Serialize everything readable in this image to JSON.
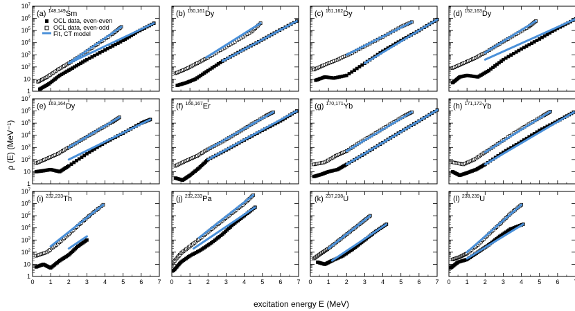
{
  "figure": {
    "xlabel": "excitation energy E (MeV)",
    "ylabel": "ρ (E) (MeV⁻¹)"
  },
  "legend": {
    "even_even": "OCL data, even-even",
    "even_odd": "OCL data, even-odd",
    "fit": "Fit, CT model"
  },
  "colors": {
    "fit": "#4a90d9",
    "marker": "#000000",
    "frame": "#000000"
  },
  "chart_data": [
    {
      "type": "scatter",
      "panel": "(a)",
      "title": "(a) 148,149Sm",
      "sup": "148,149",
      "element": "Sm",
      "xlim": [
        0,
        7
      ],
      "ylim": [
        1,
        10000000
      ],
      "yscale": "log",
      "series": [
        {
          "name": "OCL data, even-even",
          "x": [
            0.4,
            0.9,
            1.5,
            2.2,
            3.0,
            4.0,
            5.0,
            5.8,
            6.7
          ],
          "values": [
            1.5,
            4,
            20,
            80,
            400,
            2500,
            15000,
            80000,
            400000
          ]
        },
        {
          "name": "OCL data, even-odd",
          "x": [
            0.3,
            0.8,
            1.4,
            2.0,
            2.8,
            3.6,
            4.4,
            4.9
          ],
          "values": [
            6,
            15,
            60,
            200,
            1200,
            8000,
            50000,
            200000
          ]
        }
      ],
      "fit": [
        {
          "x": [
            2.0,
            6.7
          ],
          "values": [
            200,
            400000
          ]
        },
        {
          "x": [
            2.0,
            4.9
          ],
          "values": [
            200,
            200000
          ]
        }
      ]
    },
    {
      "type": "scatter",
      "panel": "(b)",
      "title": "(b) 160,161Dy",
      "sup": "160,161",
      "element": "Dy",
      "xlim": [
        0,
        7
      ],
      "ylim": [
        1,
        10000000
      ],
      "yscale": "log",
      "series": [
        {
          "name": "OCL data, even-even",
          "x": [
            0.3,
            0.8,
            1.3,
            2.0,
            2.8,
            3.8,
            4.8,
            5.8,
            6.9
          ],
          "values": [
            3,
            5,
            10,
            50,
            300,
            2000,
            12000,
            80000,
            600000
          ]
        },
        {
          "name": "OCL data, even-odd",
          "x": [
            0.2,
            0.8,
            1.4,
            2.0,
            2.8,
            3.6,
            4.4,
            4.9
          ],
          "values": [
            30,
            70,
            200,
            600,
            3000,
            15000,
            80000,
            400000
          ]
        }
      ],
      "fit": [
        {
          "x": [
            2.8,
            6.9
          ],
          "values": [
            300,
            600000
          ]
        },
        {
          "x": [
            1.9,
            4.9
          ],
          "values": [
            600,
            400000
          ]
        }
      ]
    },
    {
      "type": "scatter",
      "panel": "(c)",
      "title": "(c) 161,162Dy",
      "sup": "161,162",
      "element": "Dy",
      "xlim": [
        0,
        7
      ],
      "ylim": [
        1,
        10000000
      ],
      "yscale": "log",
      "series": [
        {
          "name": "OCL data, even-even",
          "x": [
            0.3,
            0.8,
            1.3,
            2.0,
            3.0,
            4.0,
            5.0,
            6.0,
            7.0
          ],
          "values": [
            8,
            15,
            12,
            20,
            200,
            2000,
            15000,
            100000,
            800000
          ]
        },
        {
          "name": "OCL data, even-odd",
          "x": [
            0.2,
            0.8,
            1.5,
            2.2,
            3.0,
            4.0,
            5.0,
            5.6
          ],
          "values": [
            60,
            150,
            400,
            1200,
            5000,
            30000,
            200000,
            500000
          ]
        }
      ],
      "fit": [
        {
          "x": [
            3.0,
            7.0
          ],
          "values": [
            200,
            800000
          ]
        },
        {
          "x": [
            2.0,
            5.6
          ],
          "values": [
            1000,
            500000
          ]
        }
      ]
    },
    {
      "type": "scatter",
      "panel": "(d)",
      "title": "(d) 162,163Dy",
      "sup": "162,163",
      "element": "Dy",
      "xlim": [
        0,
        7
      ],
      "ylim": [
        1,
        10000000
      ],
      "yscale": "log",
      "series": [
        {
          "name": "OCL data, even-even",
          "x": [
            0.2,
            0.6,
            1.0,
            1.6,
            2.2,
            3.0,
            4.0,
            5.0,
            6.0,
            7.0
          ],
          "values": [
            5,
            15,
            20,
            15,
            50,
            400,
            3000,
            20000,
            150000,
            900000
          ]
        },
        {
          "name": "OCL data, even-odd",
          "x": [
            0.2,
            0.8,
            1.4,
            2.0,
            2.8,
            3.6,
            4.4,
            4.8
          ],
          "values": [
            80,
            200,
            500,
            1500,
            8000,
            40000,
            200000,
            600000
          ]
        }
      ],
      "fit": [
        {
          "x": [
            2.0,
            7.0
          ],
          "values": [
            400,
            900000
          ]
        },
        {
          "x": [
            2.0,
            4.8
          ],
          "values": [
            1500,
            600000
          ]
        }
      ]
    },
    {
      "type": "scatter",
      "panel": "(e)",
      "title": "(e) 163,164Dy",
      "sup": "163,164",
      "element": "Dy",
      "xlim": [
        0,
        7
      ],
      "ylim": [
        1,
        10000000
      ],
      "yscale": "log",
      "series": [
        {
          "name": "OCL data, even-even",
          "x": [
            0.2,
            0.6,
            1.0,
            1.5,
            2.0,
            3.0,
            4.0,
            5.0,
            6.0,
            6.5
          ],
          "values": [
            10,
            12,
            15,
            10,
            30,
            300,
            2500,
            15000,
            100000,
            200000
          ]
        },
        {
          "name": "OCL data, even-odd",
          "x": [
            0.2,
            0.8,
            1.4,
            2.0,
            2.8,
            3.6,
            4.4,
            4.8
          ],
          "values": [
            50,
            120,
            300,
            1000,
            5000,
            25000,
            120000,
            300000
          ]
        }
      ],
      "fit": [
        {
          "x": [
            2.0,
            6.5
          ],
          "values": [
            100,
            200000
          ]
        },
        {
          "x": [
            2.0,
            4.8
          ],
          "values": [
            1000,
            300000
          ]
        }
      ]
    },
    {
      "type": "scatter",
      "panel": "(f)",
      "title": "(f) 166,167Er",
      "sup": "166,167",
      "element": "Er",
      "xlim": [
        0,
        7
      ],
      "ylim": [
        1,
        10000000
      ],
      "yscale": "log",
      "series": [
        {
          "name": "OCL data, even-even",
          "x": [
            0.2,
            0.6,
            1.0,
            1.5,
            2.0,
            3.0,
            4.0,
            5.0,
            6.0,
            6.9
          ],
          "values": [
            3,
            2,
            5,
            20,
            100,
            600,
            4000,
            25000,
            150000,
            1000000
          ]
        },
        {
          "name": "OCL data, even-odd",
          "x": [
            0.2,
            0.8,
            1.4,
            2.0,
            2.8,
            3.6,
            4.4,
            5.2,
            5.6
          ],
          "values": [
            30,
            80,
            200,
            700,
            3000,
            15000,
            80000,
            400000,
            800000
          ]
        }
      ],
      "fit": [
        {
          "x": [
            2.0,
            6.9
          ],
          "values": [
            100,
            1000000
          ]
        },
        {
          "x": [
            2.0,
            5.6
          ],
          "values": [
            700,
            800000
          ]
        }
      ]
    },
    {
      "type": "scatter",
      "panel": "(g)",
      "title": "(g) 170,171Yb",
      "sup": "170,171",
      "element": "Yb",
      "xlim": [
        0,
        7
      ],
      "ylim": [
        1,
        10000000
      ],
      "yscale": "log",
      "series": [
        {
          "name": "OCL data, even-even",
          "x": [
            0.2,
            0.6,
            1.0,
            1.5,
            2.0,
            3.0,
            4.0,
            5.0,
            6.0,
            7.0
          ],
          "values": [
            4,
            6,
            10,
            15,
            40,
            300,
            2500,
            20000,
            150000,
            1200000
          ]
        },
        {
          "name": "OCL data, even-odd",
          "x": [
            0.2,
            0.8,
            1.4,
            2.0,
            2.8,
            3.6,
            4.4,
            5.2,
            5.6
          ],
          "values": [
            40,
            60,
            200,
            500,
            3000,
            15000,
            80000,
            400000,
            800000
          ]
        }
      ],
      "fit": [
        {
          "x": [
            2.0,
            7.0
          ],
          "values": [
            40,
            1200000
          ]
        },
        {
          "x": [
            2.0,
            5.6
          ],
          "values": [
            500,
            800000
          ]
        }
      ]
    },
    {
      "type": "scatter",
      "panel": "(h)",
      "title": "(h) 171,172Yb",
      "sup": "171,172",
      "element": "Yb",
      "xlim": [
        0,
        7
      ],
      "ylim": [
        1,
        10000000
      ],
      "yscale": "log",
      "series": [
        {
          "name": "OCL data, even-even",
          "x": [
            0.2,
            0.6,
            1.0,
            1.5,
            2.0,
            3.0,
            4.0,
            5.0,
            6.0,
            6.9
          ],
          "values": [
            10,
            5,
            8,
            15,
            40,
            400,
            3000,
            25000,
            150000,
            800000
          ]
        },
        {
          "name": "OCL data, even-odd",
          "x": [
            0.2,
            0.8,
            1.4,
            2.0,
            2.8,
            3.6,
            4.4,
            5.2,
            5.6
          ],
          "values": [
            60,
            40,
            100,
            400,
            2500,
            15000,
            80000,
            400000,
            900000
          ]
        }
      ],
      "fit": [
        {
          "x": [
            2.0,
            6.9
          ],
          "values": [
            40,
            800000
          ]
        },
        {
          "x": [
            2.0,
            5.6
          ],
          "values": [
            400,
            900000
          ]
        }
      ]
    },
    {
      "type": "scatter",
      "panel": "(i)",
      "title": "(i) 232,233Th",
      "sup": "232,233",
      "element": "Th",
      "xlim": [
        0,
        7
      ],
      "ylim": [
        1,
        10000000
      ],
      "yscale": "log",
      "series": [
        {
          "name": "OCL data, even-even",
          "x": [
            0.2,
            0.6,
            1.0,
            1.5,
            2.0,
            2.5,
            3.0
          ],
          "values": [
            6,
            10,
            5,
            20,
            60,
            300,
            1000
          ]
        },
        {
          "name": "OCL data, even-odd",
          "x": [
            0.2,
            0.8,
            1.4,
            2.0,
            2.6,
            3.2,
            3.9
          ],
          "values": [
            50,
            100,
            500,
            3000,
            20000,
            120000,
            800000
          ]
        }
      ],
      "fit": [
        {
          "x": [
            2.0,
            3.0
          ],
          "values": [
            200,
            2000
          ]
        },
        {
          "x": [
            1.0,
            3.9
          ],
          "values": [
            300,
            800000
          ]
        }
      ]
    },
    {
      "type": "scatter",
      "panel": "(j)",
      "title": "(j) 232,233Pa",
      "sup": "232,233",
      "element": "Pa",
      "xlim": [
        0,
        7
      ],
      "ylim": [
        1,
        10000000
      ],
      "yscale": "log",
      "series": [
        {
          "name": "OCL data, even-even",
          "x": [
            0.1,
            0.5,
            1.0,
            1.6,
            2.2,
            2.8,
            3.4,
            4.0,
            4.6
          ],
          "values": [
            3,
            15,
            50,
            150,
            600,
            3000,
            20000,
            100000,
            500000
          ]
        },
        {
          "name": "OCL data, even-odd",
          "x": [
            0.1,
            0.5,
            1.0,
            1.6,
            2.2,
            2.8,
            3.4,
            4.0,
            4.5
          ],
          "values": [
            15,
            80,
            300,
            1500,
            8000,
            40000,
            200000,
            1000000,
            5000000
          ]
        }
      ],
      "fit": [
        {
          "x": [
            1.2,
            4.6
          ],
          "values": [
            200,
            500000
          ]
        },
        {
          "x": [
            1.5,
            4.5
          ],
          "values": [
            1500,
            5000000
          ]
        }
      ]
    },
    {
      "type": "scatter",
      "panel": "(k)",
      "title": "(k) 237,238U",
      "sup": "237,238",
      "element": "U",
      "xlim": [
        0,
        7
      ],
      "ylim": [
        1,
        10000000
      ],
      "yscale": "log",
      "series": [
        {
          "name": "OCL data, even-even",
          "x": [
            0.4,
            0.8,
            1.2,
            1.8,
            2.4,
            3.0,
            3.6,
            4.2
          ],
          "values": [
            15,
            10,
            20,
            50,
            200,
            1000,
            5000,
            20000
          ]
        },
        {
          "name": "OCL data, even-odd",
          "x": [
            0.2,
            0.6,
            1.0,
            1.6,
            2.2,
            2.8,
            3.3
          ],
          "values": [
            30,
            80,
            200,
            1000,
            5000,
            25000,
            100000
          ]
        }
      ],
      "fit": [
        {
          "x": [
            1.2,
            4.2
          ],
          "values": [
            20,
            20000
          ]
        },
        {
          "x": [
            1.0,
            3.3
          ],
          "values": [
            200,
            100000
          ]
        }
      ]
    },
    {
      "type": "scatter",
      "panel": "(l)",
      "title": "(l) 238,239U",
      "sup": "238,239",
      "element": "U",
      "xlim": [
        0,
        7
      ],
      "ylim": [
        1,
        10000000
      ],
      "yscale": "log",
      "series": [
        {
          "name": "OCL data, even-even",
          "x": [
            0.1,
            0.5,
            1.0,
            1.6,
            2.2,
            2.8,
            3.4,
            4.1
          ],
          "values": [
            5,
            15,
            25,
            100,
            400,
            2000,
            8000,
            20000
          ]
        },
        {
          "name": "OCL data, even-odd",
          "x": [
            0.2,
            0.6,
            1.0,
            1.6,
            2.2,
            2.8,
            3.4,
            4.0
          ],
          "values": [
            25,
            40,
            80,
            400,
            3000,
            20000,
            150000,
            800000
          ]
        }
      ],
      "fit": [
        {
          "x": [
            1.0,
            4.1
          ],
          "values": [
            30,
            20000
          ]
        },
        {
          "x": [
            1.0,
            4.0
          ],
          "values": [
            100,
            800000
          ]
        }
      ]
    }
  ]
}
